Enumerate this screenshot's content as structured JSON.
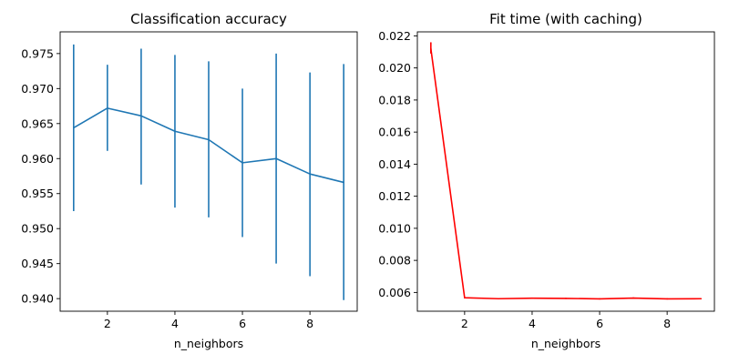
{
  "chart_data": [
    {
      "type": "line",
      "title": "Classification accuracy",
      "xlabel": "n_neighbors",
      "ylabel": "",
      "x": [
        1,
        2,
        3,
        4,
        5,
        6,
        7,
        8,
        9
      ],
      "series": [
        {
          "values": [
            0.9644,
            0.9672,
            0.9661,
            0.9639,
            0.9627,
            0.9594,
            0.96,
            0.9578,
            0.9566
          ],
          "error_low": [
            0.9525,
            0.9611,
            0.9563,
            0.953,
            0.9516,
            0.9488,
            0.945,
            0.9432,
            0.9398
          ],
          "error_high": [
            0.9763,
            0.9734,
            0.9757,
            0.9748,
            0.9739,
            0.97,
            0.975,
            0.9723,
            0.9735
          ],
          "color": "#1f77b4"
        }
      ],
      "xlim": [
        0.6,
        9.4
      ],
      "ylim": [
        0.9382,
        0.9781
      ],
      "xticks": [
        2,
        4,
        6,
        8
      ],
      "yticks": [
        0.94,
        0.945,
        0.95,
        0.955,
        0.96,
        0.965,
        0.97,
        0.975
      ],
      "ytick_labels": [
        "0.940",
        "0.945",
        "0.950",
        "0.955",
        "0.960",
        "0.965",
        "0.970",
        "0.975"
      ],
      "grid": false
    },
    {
      "type": "line",
      "title": "Fit time (with caching)",
      "xlabel": "n_neighbors",
      "ylabel": "",
      "x": [
        1,
        2,
        3,
        4,
        5,
        6,
        7,
        8,
        9
      ],
      "series": [
        {
          "values": [
            0.0212,
            0.00567,
            0.00561,
            0.00564,
            0.00563,
            0.0056,
            0.00565,
            0.0056,
            0.00561
          ],
          "error_low": [
            0.0209,
            0.00563,
            0.00558,
            0.0056,
            0.0056,
            0.00557,
            0.00561,
            0.00557,
            0.00558
          ],
          "error_high": [
            0.0216,
            0.00571,
            0.00564,
            0.00568,
            0.00566,
            0.00563,
            0.00569,
            0.00563,
            0.00564
          ],
          "color": "#ff0000"
        }
      ],
      "xlim": [
        0.6,
        9.4
      ],
      "ylim": [
        0.00483,
        0.02225
      ],
      "xticks": [
        2,
        4,
        6,
        8
      ],
      "yticks": [
        0.006,
        0.008,
        0.01,
        0.012,
        0.014,
        0.016,
        0.018,
        0.02,
        0.022
      ],
      "ytick_labels": [
        "0.006",
        "0.008",
        "0.010",
        "0.012",
        "0.014",
        "0.016",
        "0.018",
        "0.020",
        "0.022"
      ],
      "grid": false
    }
  ]
}
